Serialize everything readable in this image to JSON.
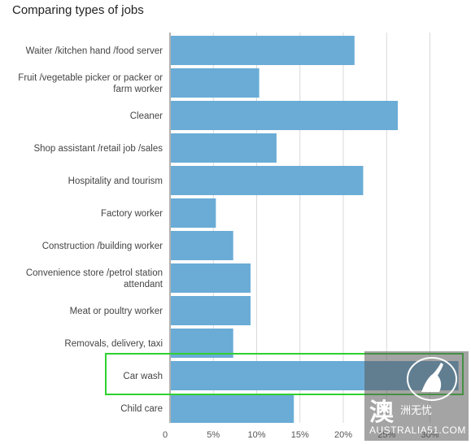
{
  "title": "Comparing types of jobs",
  "chart_data": {
    "type": "bar",
    "orientation": "horizontal",
    "title": "Comparing types of jobs",
    "categories": [
      [
        "Waiter /kitchen hand /food server"
      ],
      [
        "Fruit /vegetable picker or packer or",
        "farm worker"
      ],
      [
        "Cleaner"
      ],
      [
        "Shop assistant /retail job /sales"
      ],
      [
        "Hospitality and tourism"
      ],
      [
        "Factory worker"
      ],
      [
        "Construction /building worker"
      ],
      [
        "Convenience store /petrol station",
        "attendant"
      ],
      [
        "Meat or poultry worker"
      ],
      [
        "Removals, delivery, taxi"
      ],
      [
        "Car wash"
      ],
      [
        "Child care"
      ]
    ],
    "values": [
      21.2,
      10.2,
      26.2,
      12.2,
      22.2,
      5.2,
      7.2,
      9.2,
      9.2,
      7.2,
      33.2,
      14.2
    ],
    "xticks": [
      "0",
      "5%",
      "10%",
      "15%",
      "20%",
      "25%",
      "30%"
    ],
    "xlim": [
      0,
      33.5
    ],
    "grid": true,
    "highlighted_category": "Car wash",
    "highlight_color": "#2fd12f",
    "bar_color": "#6aacd6"
  },
  "watermark": {
    "glyph": "澳",
    "sub": "洲无忧",
    "site": "AUSTRALIA51.COM"
  }
}
